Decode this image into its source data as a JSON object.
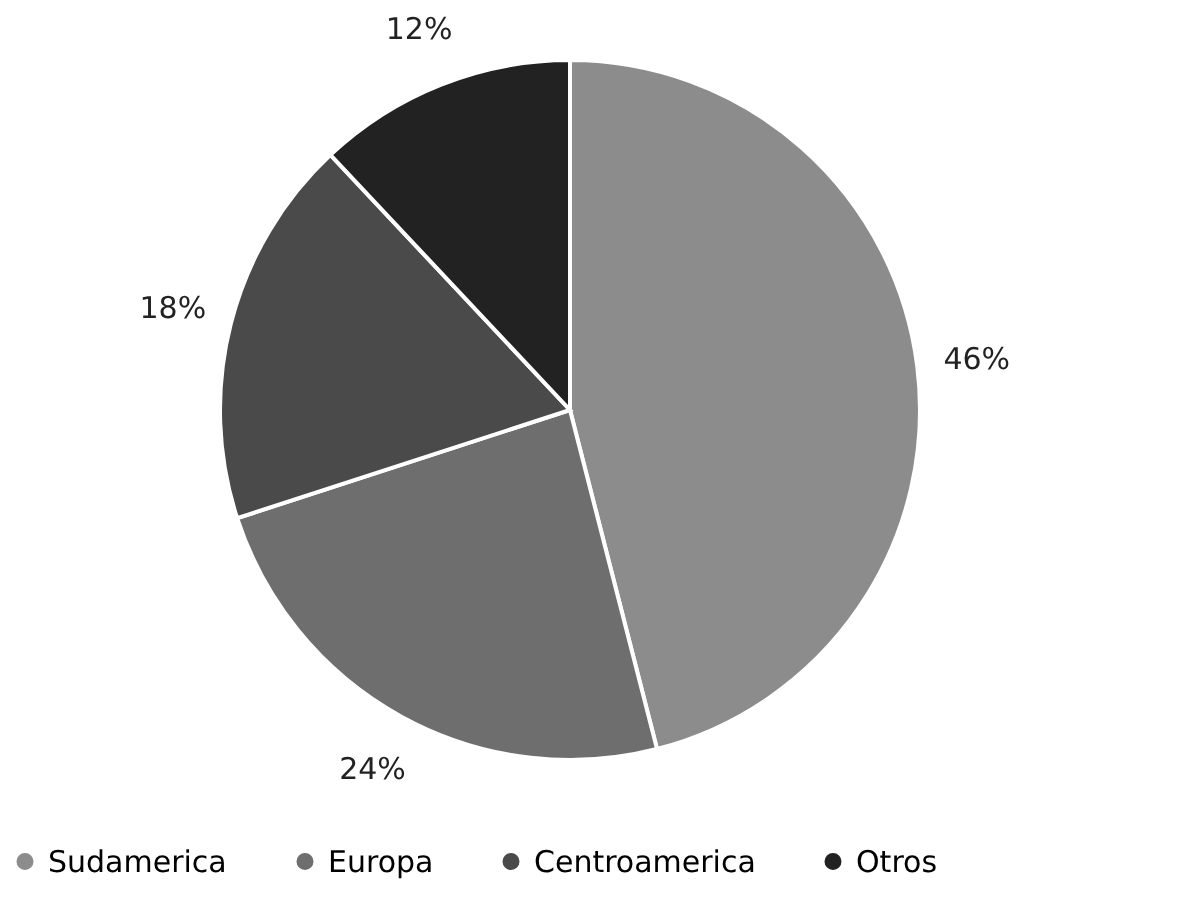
{
  "chart_data": {
    "type": "pie",
    "categories": [
      "Sudamerica",
      "Europa",
      "Centroamerica",
      "Otros"
    ],
    "values": [
      46,
      24,
      18,
      12
    ],
    "value_labels": [
      "46%",
      "24%",
      "18%",
      "12%"
    ],
    "colors": [
      "#8c8c8c",
      "#6e6e6e",
      "#4a4a4a",
      "#222222"
    ],
    "legend": "bottom"
  }
}
